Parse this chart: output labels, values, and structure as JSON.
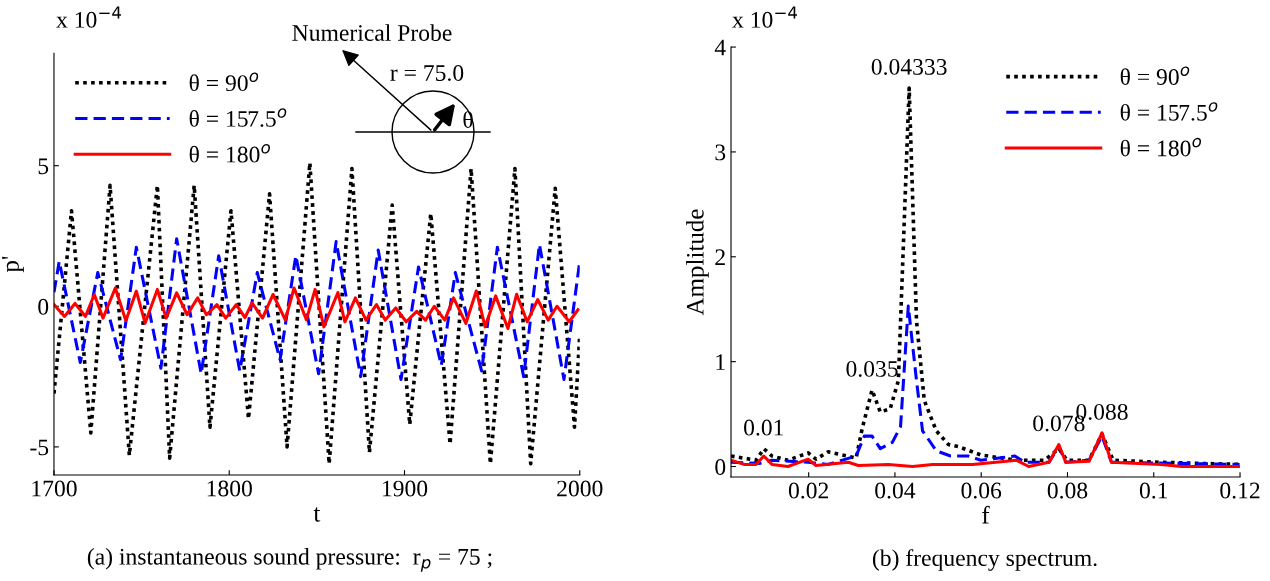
{
  "chart_data": [
    {
      "type": "line",
      "xlabel": "t",
      "ylabel": "p'",
      "xlim": [
        1700,
        2000
      ],
      "xticks": [
        1700,
        1800,
        1900,
        2000
      ],
      "ylim": [
        -6,
        9
      ],
      "yticks": [
        -5,
        0,
        5
      ],
      "legend": "top left",
      "grid": false,
      "annotations": [
        "x 10$^{−4}$",
        "Numerical Probe",
        "r = 75.0",
        "θ",
        "(a) instantaneous sound pressure:  r$_{p}$ = 75 ;"
      ],
      "series": [
        {
          "name": "θ = 90$^{o}$",
          "color": "#000000",
          "line_style": "dotted",
          "x": [
            1700,
            1710,
            1721,
            1732,
            1743,
            1759,
            1766,
            1780,
            1789,
            1801,
            1811,
            1823,
            1833,
            1846,
            1857,
            1870,
            1880,
            1893,
            1903,
            1915,
            1926,
            1938,
            1949,
            1963,
            1972,
            1986,
            1997,
            2000
          ],
          "values": [
            -3.1,
            3.4,
            -4.5,
            4.3,
            -5.3,
            4.3,
            -5.4,
            4.3,
            -4.3,
            3.4,
            -4.0,
            4.0,
            -5.0,
            5.1,
            -5.6,
            4.9,
            -5.2,
            3.6,
            -4.2,
            3.3,
            -4.9,
            4.9,
            -5.6,
            4.9,
            -5.6,
            4.2,
            -4.3,
            -1.0
          ]
        },
        {
          "name": "θ = 157.5$^{o}$",
          "color": "#0000ff",
          "line_style": "dashed",
          "x": [
            1700,
            1703,
            1715,
            1725,
            1738,
            1747,
            1761,
            1770,
            1784,
            1794,
            1806,
            1816,
            1829,
            1838,
            1851,
            1861,
            1875,
            1885,
            1898,
            1908,
            1921,
            1929,
            1944,
            1953,
            1968,
            1977,
            1991,
            2000
          ],
          "values": [
            0.5,
            1.6,
            -2.0,
            1.2,
            -1.9,
            2.1,
            -2.2,
            2.4,
            -2.4,
            1.8,
            -2.3,
            1.2,
            -1.9,
            1.8,
            -2.4,
            2.3,
            -2.5,
            2.0,
            -2.6,
            1.4,
            -2.1,
            1.2,
            -2.3,
            2.1,
            -2.5,
            2.2,
            -2.6,
            1.6
          ]
        },
        {
          "name": "θ = 180$^{o}$",
          "color": "#ff0000",
          "line_style": "solid",
          "x": [
            1700,
            1706,
            1712,
            1718,
            1723,
            1728,
            1735,
            1741,
            1747,
            1752,
            1759,
            1764,
            1770,
            1776,
            1782,
            1787,
            1793,
            1798,
            1804,
            1809,
            1813,
            1819,
            1825,
            1832,
            1837,
            1844,
            1849,
            1854,
            1862,
            1866,
            1872,
            1878,
            1884,
            1889,
            1895,
            1901,
            1907,
            1912,
            1917,
            1923,
            1928,
            1935,
            1941,
            1946,
            1952,
            1959,
            1964,
            1970,
            1976,
            1982,
            1987,
            1994,
            1999
          ],
          "values": [
            0.06,
            -0.36,
            0.1,
            -0.36,
            0.42,
            -0.42,
            0.65,
            -0.51,
            0.54,
            -0.6,
            0.6,
            -0.42,
            0.48,
            -0.3,
            0.3,
            -0.3,
            0.06,
            -0.42,
            0.06,
            -0.4,
            0.12,
            -0.42,
            0.42,
            -0.48,
            0.65,
            -0.48,
            0.6,
            -0.73,
            0.49,
            -0.55,
            0.3,
            -0.49,
            0.06,
            -0.49,
            -0.06,
            -0.55,
            -0.18,
            -0.49,
            0.0,
            -0.49,
            0.3,
            -0.61,
            0.55,
            -0.73,
            0.37,
            -0.79,
            0.43,
            -0.55,
            0.24,
            -0.49,
            0.0,
            -0.55,
            -0.12
          ]
        }
      ]
    },
    {
      "type": "line",
      "xlabel": "f",
      "ylabel": "Amplitude",
      "xlim": [
        0.002,
        0.12
      ],
      "xticks": [
        0.02,
        0.04,
        0.06,
        0.08,
        0.1,
        0.12
      ],
      "ylim": [
        -0.1,
        4
      ],
      "yticks": [
        0,
        1,
        2,
        3,
        4
      ],
      "legend": "top right",
      "grid": false,
      "annotations": [
        "x 10$^{−4}$",
        "(b) frequency spectrum.",
        {
          "text": "0.01",
          "x": 0.0096,
          "y": 0.17
        },
        {
          "text": "0.035",
          "x": 0.0347,
          "y": 0.73
        },
        {
          "text": "0.04333",
          "x": 0.0433,
          "y": 3.61
        },
        {
          "text": "0.078",
          "x": 0.078,
          "y": 0.21
        },
        {
          "text": "0.088",
          "x": 0.088,
          "y": 0.32
        }
      ],
      "series": [
        {
          "name": "θ = 90$^{o}$",
          "color": "#000000",
          "line_style": "dotted",
          "x": [
            0.002,
            0.0078,
            0.0096,
            0.0115,
            0.0152,
            0.0199,
            0.0217,
            0.0245,
            0.031,
            0.0324,
            0.0347,
            0.0366,
            0.0389,
            0.0408,
            0.0433,
            0.045,
            0.0468,
            0.0496,
            0.0524,
            0.0547,
            0.0599,
            0.0682,
            0.0747,
            0.078,
            0.0799,
            0.085,
            0.088,
            0.0906,
            0.1017,
            0.1199
          ],
          "values": [
            0.1,
            0.06,
            0.17,
            0.1,
            0.06,
            0.13,
            0.07,
            0.14,
            0.08,
            0.36,
            0.73,
            0.52,
            0.55,
            0.82,
            3.61,
            1.39,
            0.63,
            0.34,
            0.21,
            0.19,
            0.11,
            0.06,
            0.06,
            0.17,
            0.06,
            0.06,
            0.31,
            0.06,
            0.04,
            0.02
          ]
        },
        {
          "name": "θ = 157.5$^{o}$",
          "color": "#0000ff",
          "line_style": "dashed",
          "x": [
            0.002,
            0.0087,
            0.0115,
            0.0199,
            0.0245,
            0.031,
            0.0329,
            0.0347,
            0.0366,
            0.0394,
            0.0413,
            0.0431,
            0.045,
            0.0464,
            0.0496,
            0.0529,
            0.057,
            0.0599,
            0.0678,
            0.0701,
            0.0757,
            0.078,
            0.0796,
            0.085,
            0.088,
            0.0902,
            0.1199
          ],
          "values": [
            0.04,
            0.03,
            0.06,
            0.04,
            0.02,
            0.1,
            0.29,
            0.29,
            0.17,
            0.23,
            0.38,
            1.53,
            0.82,
            0.34,
            0.15,
            0.1,
            0.1,
            0.06,
            0.1,
            0.04,
            0.04,
            0.19,
            0.04,
            0.06,
            0.29,
            0.04,
            0.02
          ]
        },
        {
          "name": "θ = 180$^{o}$",
          "color": "#ff0000",
          "line_style": "solid",
          "x": [
            0.002,
            0.005,
            0.0078,
            0.0096,
            0.0115,
            0.0152,
            0.0199,
            0.0217,
            0.0292,
            0.0315,
            0.0385,
            0.0441,
            0.0487,
            0.058,
            0.0682,
            0.071,
            0.0757,
            0.078,
            0.0796,
            0.085,
            0.088,
            0.0902,
            0.1017,
            0.1064,
            0.1199
          ],
          "values": [
            0.06,
            0.02,
            0.02,
            0.1,
            0.02,
            0.0,
            0.07,
            0.01,
            0.04,
            0.01,
            0.02,
            0.0,
            0.02,
            0.02,
            0.06,
            0.0,
            0.04,
            0.21,
            0.04,
            0.05,
            0.32,
            0.04,
            0.02,
            0.0,
            0.0
          ]
        }
      ]
    }
  ]
}
